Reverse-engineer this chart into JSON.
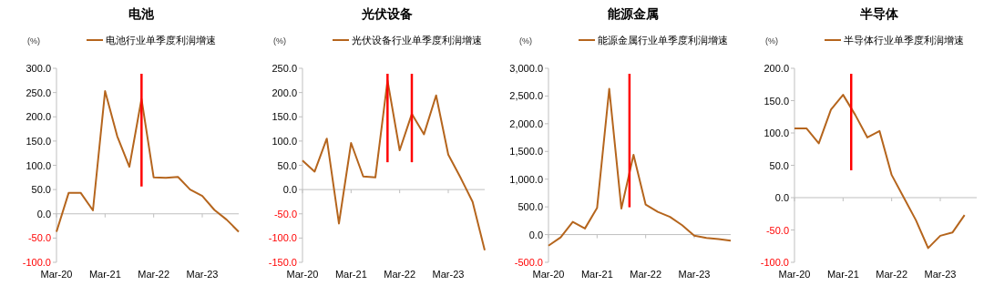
{
  "chart_data": [
    {
      "type": "line",
      "title": "电池",
      "ylabel": "(%)",
      "legend": "top",
      "x": [
        "2020-03",
        "2020-06",
        "2020-09",
        "2020-12",
        "2021-03",
        "2021-06",
        "2021-09",
        "2021-12",
        "2022-03",
        "2022-06",
        "2022-09",
        "2022-12",
        "2023-03",
        "2023-06",
        "2023-09",
        "2023-12"
      ],
      "series": [
        {
          "name": "电池行业单季度利润增速",
          "color": "#b5651d",
          "values": [
            -37,
            43,
            43,
            7,
            253,
            160,
            97,
            237,
            75,
            74,
            76,
            50,
            37,
            8,
            -12,
            -37
          ]
        }
      ],
      "xlim": [
        "2020-03",
        "2023-12"
      ],
      "xticks": [
        {
          "value": "2020-03",
          "label": "Mar-20"
        },
        {
          "value": "2021-03",
          "label": "Mar-21"
        },
        {
          "value": "2022-03",
          "label": "Mar-22"
        },
        {
          "value": "2023-03",
          "label": "Mar-23"
        }
      ],
      "ylim": [
        -100,
        300
      ],
      "yticks": [
        {
          "value": -100,
          "label": "-100.0"
        },
        {
          "value": -50,
          "label": "-50.0"
        },
        {
          "value": 0,
          "label": "0.0"
        },
        {
          "value": 50,
          "label": "50.0"
        },
        {
          "value": 100,
          "label": "100.0"
        },
        {
          "value": 150,
          "label": "150.0"
        },
        {
          "value": 200,
          "label": "200.0"
        },
        {
          "value": 250,
          "label": "250.0"
        },
        {
          "value": 300,
          "label": "300.0"
        }
      ],
      "ref_lines": [
        {
          "axis": "x",
          "value": "2021-12",
          "color": "#ff0000"
        }
      ]
    },
    {
      "type": "line",
      "title": "光伏设备",
      "ylabel": "(%)",
      "legend": "top",
      "x": [
        "2020-03",
        "2020-06",
        "2020-09",
        "2020-12",
        "2021-03",
        "2021-06",
        "2021-09",
        "2021-12",
        "2022-03",
        "2022-06",
        "2022-09",
        "2022-12",
        "2023-03",
        "2023-06",
        "2023-09",
        "2023-12"
      ],
      "series": [
        {
          "name": "光伏设备行业单季度利润增速",
          "color": "#b5651d",
          "values": [
            60,
            37,
            105,
            -70,
            96,
            27,
            25,
            225,
            81,
            156,
            114,
            194,
            72,
            25,
            -25,
            -125
          ]
        }
      ],
      "xlim": [
        "2020-03",
        "2023-12"
      ],
      "xticks": [
        {
          "value": "2020-03",
          "label": "Mar-20"
        },
        {
          "value": "2021-03",
          "label": "Mar-21"
        },
        {
          "value": "2022-03",
          "label": "Mar-22"
        },
        {
          "value": "2023-03",
          "label": "Mar-23"
        }
      ],
      "ylim": [
        -150,
        250
      ],
      "yticks": [
        {
          "value": -150,
          "label": "-150.0"
        },
        {
          "value": -100,
          "label": "-100.0"
        },
        {
          "value": -50,
          "label": "-50.0"
        },
        {
          "value": 0,
          "label": "0.0"
        },
        {
          "value": 50,
          "label": "50.0"
        },
        {
          "value": 100,
          "label": "100.0"
        },
        {
          "value": 150,
          "label": "150.0"
        },
        {
          "value": 200,
          "label": "200.0"
        },
        {
          "value": 250,
          "label": "250.0"
        }
      ],
      "ref_lines": [
        {
          "axis": "x",
          "value": "2021-12",
          "color": "#ff0000"
        },
        {
          "axis": "x",
          "value": "2022-06",
          "color": "#ff0000"
        }
      ]
    },
    {
      "type": "line",
      "title": "能源金属",
      "ylabel": "(%)",
      "legend": "top",
      "x": [
        "2020-03",
        "2020-06",
        "2020-09",
        "2020-12",
        "2021-03",
        "2021-06",
        "2021-09",
        "2021-12",
        "2022-03",
        "2022-06",
        "2022-09",
        "2022-12",
        "2023-03",
        "2023-06",
        "2023-09",
        "2023-12"
      ],
      "series": [
        {
          "name": "能源金属行业单季度利润增速",
          "color": "#b5651d",
          "values": [
            -200,
            -50,
            230,
            110,
            480,
            2630,
            470,
            1440,
            540,
            410,
            320,
            170,
            -20,
            -60,
            -80,
            -110
          ]
        }
      ],
      "xlim": [
        "2020-03",
        "2023-12"
      ],
      "xticks": [
        {
          "value": "2020-03",
          "label": "Mar-20"
        },
        {
          "value": "2021-03",
          "label": "Mar-21"
        },
        {
          "value": "2022-03",
          "label": "Mar-22"
        },
        {
          "value": "2023-03",
          "label": "Mar-23"
        }
      ],
      "ylim": [
        -500,
        3000
      ],
      "yticks": [
        {
          "value": -500,
          "label": "-500.0"
        },
        {
          "value": 0,
          "label": "0.0"
        },
        {
          "value": 500,
          "label": "500.0"
        },
        {
          "value": 1000,
          "label": "1,000.0"
        },
        {
          "value": 1500,
          "label": "1,500.0"
        },
        {
          "value": 2000,
          "label": "2,000.0"
        },
        {
          "value": 2500,
          "label": "2,500.0"
        },
        {
          "value": 3000,
          "label": "3,000.0"
        }
      ],
      "ref_lines": [
        {
          "axis": "x",
          "value": "2021-11",
          "color": "#ff0000"
        }
      ]
    },
    {
      "type": "line",
      "title": "半导体",
      "ylabel": "(%)",
      "legend": "top",
      "x": [
        "2020-03",
        "2020-06",
        "2020-09",
        "2020-12",
        "2021-03",
        "2021-06",
        "2021-09",
        "2021-12",
        "2022-03",
        "2022-06",
        "2022-09",
        "2022-12",
        "2023-03",
        "2023-06",
        "2023-09"
      ],
      "series": [
        {
          "name": "半导体行业单季度利润增速",
          "color": "#b5651d",
          "values": [
            107,
            107,
            84,
            136,
            159,
            128,
            93,
            103,
            35,
            0,
            -35,
            -78,
            -59,
            -54,
            -27
          ]
        }
      ],
      "xlim": [
        "2020-03",
        "2023-12"
      ],
      "xticks": [
        {
          "value": "2020-03",
          "label": "Mar-20"
        },
        {
          "value": "2021-03",
          "label": "Mar-21"
        },
        {
          "value": "2022-03",
          "label": "Mar-22"
        },
        {
          "value": "2023-03",
          "label": "Mar-23"
        }
      ],
      "ylim": [
        -100,
        200
      ],
      "yticks": [
        {
          "value": -100,
          "label": "-100.0"
        },
        {
          "value": -50,
          "label": "-50.0"
        },
        {
          "value": 0,
          "label": "0.0"
        },
        {
          "value": 50,
          "label": "50.0"
        },
        {
          "value": 100,
          "label": "100.0"
        },
        {
          "value": 150,
          "label": "150.0"
        },
        {
          "value": 200,
          "label": "200.0"
        }
      ],
      "ref_lines": [
        {
          "axis": "x",
          "value": "2021-05",
          "color": "#ff0000"
        }
      ]
    }
  ]
}
